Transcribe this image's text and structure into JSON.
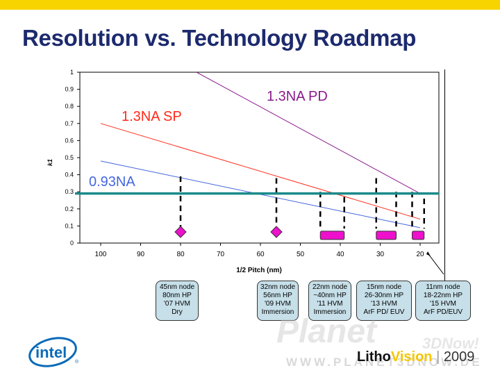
{
  "slide": {
    "title": "Resolution vs. Technology Roadmap",
    "accent_bar_color": "#f7d400",
    "title_color": "#1c2a6e"
  },
  "chart_data": {
    "type": "line",
    "xlabel": "1/2 Pitch (nm)",
    "ylabel": "k1",
    "xlim": [
      100,
      20
    ],
    "ylim": [
      0,
      1
    ],
    "x_reversed": true,
    "x_ticks": [
      100,
      90,
      80,
      70,
      60,
      50,
      40,
      30,
      20
    ],
    "y_ticks": [
      0,
      0.1,
      0.2,
      0.3,
      0.4,
      0.5,
      0.6,
      0.7,
      0.8,
      0.9,
      1
    ],
    "series": [
      {
        "name": "1.3NA PD",
        "color": "#8b1a8b",
        "x": [
          76,
          20
        ],
        "y": [
          1.0,
          0.29
        ]
      },
      {
        "name": "1.3NA SP",
        "color": "#ff2a1a",
        "x": [
          100,
          20
        ],
        "y": [
          0.7,
          0.14
        ]
      },
      {
        "name": "0.93NA",
        "color": "#4466dd",
        "x": [
          100,
          20
        ],
        "y": [
          0.48,
          0.09
        ]
      }
    ],
    "threshold": {
      "y": 0.29,
      "color": "#1a8a8a"
    },
    "node_markers": [
      {
        "x": 80,
        "y": 0.065,
        "shape": "diamond",
        "color": "#ee10cc"
      },
      {
        "x": 56,
        "y": 0.065,
        "shape": "diamond",
        "color": "#ee10cc"
      },
      {
        "x_start": 45,
        "x_end": 39,
        "y": 0.045,
        "shape": "bar",
        "color": "#ee10cc"
      },
      {
        "x_start": 31,
        "x_end": 26,
        "y": 0.045,
        "shape": "bar",
        "color": "#ee10cc"
      },
      {
        "x_start": 22,
        "x_end": 19,
        "y": 0.045,
        "shape": "bar",
        "color": "#ee10cc"
      }
    ],
    "dashed_drops": [
      {
        "x": 80,
        "y_top": 0.39
      },
      {
        "x": 56,
        "y_top": 0.38
      },
      {
        "x": 45,
        "y_top": 0.3
      },
      {
        "x": 39,
        "y_top": 0.27
      },
      {
        "x": 31,
        "y_top": 0.38
      },
      {
        "x": 26,
        "y_top": 0.3
      },
      {
        "x": 22,
        "y_top": 0.3
      },
      {
        "x": 19,
        "y_top": 0.26
      }
    ]
  },
  "nodes": [
    {
      "lines": [
        "45nm node",
        "80nm HP",
        "'07 HVM",
        "Dry"
      ]
    },
    {
      "lines": [
        "32nm node",
        "56nm HP",
        "'09 HVM",
        "Immersion"
      ]
    },
    {
      "lines": [
        "22nm node",
        "~40nm HP",
        "'11 HVM",
        "Immersion"
      ]
    },
    {
      "lines": [
        "15nm node",
        "26-30nm HP",
        "'13 HVM",
        "ArF PD/ EUV"
      ]
    },
    {
      "lines": [
        "11nm node",
        "18-22nm HP",
        "'15 HVM",
        "ArF PD/EUV"
      ]
    }
  ],
  "footer": {
    "logo_text": "intel",
    "logo_mark": "®",
    "litho_a": "Litho",
    "litho_b": "Vision",
    "separator": "|",
    "year": "2009",
    "watermark_url": "WWW.PLANET3DNOW.DE",
    "watermark_brand": "Planet",
    "watermark_brand2": "3DNow!"
  }
}
